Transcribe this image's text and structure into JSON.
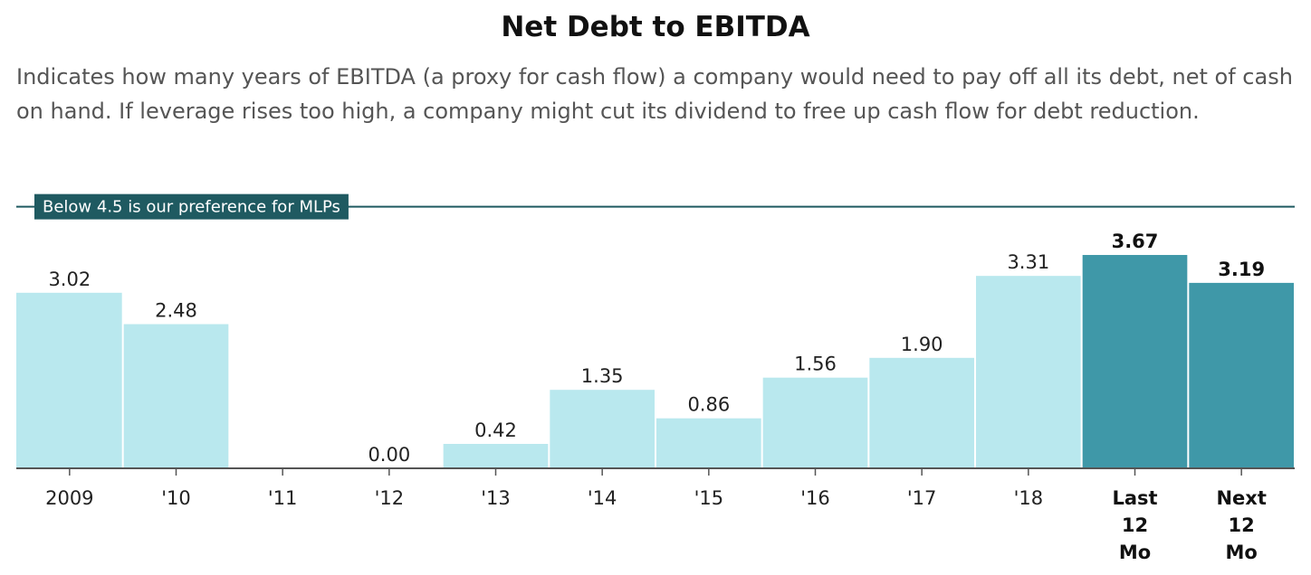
{
  "chart_data": {
    "type": "bar",
    "title": "Net Debt to EBITDA",
    "subtitle": "Indicates how many years of EBITDA (a proxy for cash flow) a company would need to pay off all its debt, net of cash on hand. If leverage rises too high, a company might cut its dividend to free up cash flow for debt reduction.",
    "categories": [
      "2009",
      "'10",
      "'11",
      "'12",
      "'13",
      "'14",
      "'15",
      "'16",
      "'17",
      "'18",
      "Last 12 Mo",
      "Next 12 Mo"
    ],
    "values": [
      3.02,
      2.48,
      null,
      0.0,
      0.42,
      1.35,
      0.86,
      1.56,
      1.9,
      3.31,
      3.67,
      3.19
    ],
    "value_labels": [
      "3.02",
      "2.48",
      "",
      "0.00",
      "0.42",
      "1.35",
      "0.86",
      "1.56",
      "1.90",
      "3.31",
      "3.67",
      "3.19"
    ],
    "highlighted": [
      false,
      false,
      false,
      false,
      false,
      false,
      false,
      false,
      false,
      false,
      true,
      true
    ],
    "ylim": [
      0,
      4.5
    ],
    "reference_line": {
      "value": 4.5,
      "label": "Below 4.5 is our preference for MLPs"
    },
    "colors": {
      "bar": "#b9e8ee",
      "bar_highlight": "#3f98a8",
      "reference": "#1f5a61",
      "axis": "#555555"
    },
    "grid": false,
    "legend": "none"
  }
}
